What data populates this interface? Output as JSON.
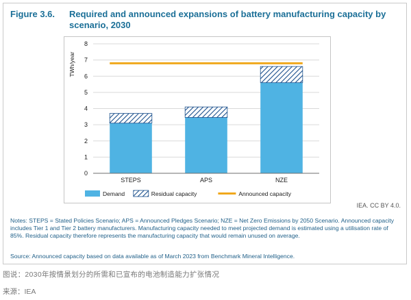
{
  "figure": {
    "label": "Figure 3.6.",
    "title": "Required and announced expansions of battery manufacturing capacity by scenario, 2030"
  },
  "credit": "IEA. CC BY 4.0.",
  "notes": "Notes: STEPS = Stated Policies Scenario; APS = Announced Pledges Scenario; NZE = Net Zero Emissions by 2050 Scenario. Announced capacity includes Tier 1 and Tier 2 battery manufacturers. Manufacturing capacity needed to meet projected demand is estimated using a utilisation rate of 85%. Residual capacity therefore represents the manufacturing capacity that would remain unused on average.",
  "source": "Source: Announced capacity based on data available as of March 2023 from Benchmark Mineral Intelligence.",
  "caption": "图说：2030年按情景划分的所需和已宣布的电池制造能力扩张情况",
  "source_line": "来源：IEA",
  "colors": {
    "demand": "#4fb3e3",
    "residual": "#1a4f8c",
    "announced": "#f0a81c",
    "title": "#1b6f97"
  },
  "chart_data": {
    "type": "bar",
    "stacked": true,
    "title": "",
    "xlabel": "",
    "ylabel": "TWh/year",
    "categories": [
      "STEPS",
      "APS",
      "NZE"
    ],
    "series": [
      {
        "name": "Demand",
        "values": [
          3.1,
          3.45,
          5.6
        ],
        "style": "solid",
        "color": "#4fb3e3"
      },
      {
        "name": "Residual capacity",
        "values": [
          0.6,
          0.65,
          1.0
        ],
        "style": "hatched",
        "color": "#1a4f8c"
      }
    ],
    "lines": [
      {
        "name": "Announced capacity",
        "value": 6.8,
        "color": "#f0a81c"
      }
    ],
    "ylim": [
      0,
      8
    ],
    "yticks": [
      0,
      1,
      2,
      3,
      4,
      5,
      6,
      7,
      8
    ],
    "grid": true,
    "legend": "bottom"
  }
}
